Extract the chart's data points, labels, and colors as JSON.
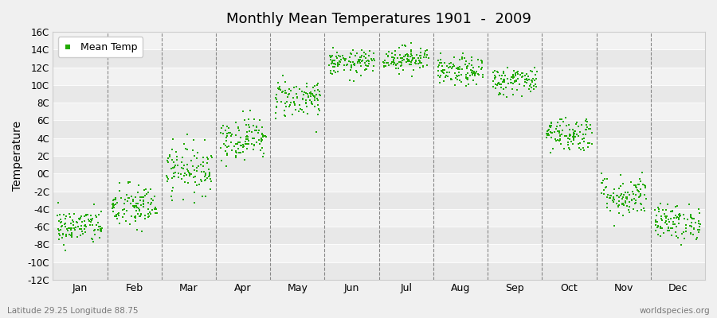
{
  "title": "Monthly Mean Temperatures 1901  -  2009",
  "ylabel": "Temperature",
  "xlabel_months": [
    "Jan",
    "Feb",
    "Mar",
    "Apr",
    "May",
    "Jun",
    "Jul",
    "Aug",
    "Sep",
    "Oct",
    "Nov",
    "Dec"
  ],
  "subtitle_left": "Latitude 29.25 Longitude 88.75",
  "subtitle_right": "worldspecies.org",
  "legend_label": "Mean Temp",
  "dot_color": "#22aa00",
  "bg_color": "#f0f0f0",
  "band_colors": [
    "#e8e8e8",
    "#f2f2f2"
  ],
  "ylim": [
    -12,
    16
  ],
  "ytick_step": 2,
  "n_years": 109,
  "monthly_means": [
    -6.0,
    -3.8,
    0.5,
    4.0,
    8.5,
    12.5,
    13.0,
    11.5,
    10.5,
    4.5,
    -2.5,
    -5.5
  ],
  "monthly_stds": [
    1.0,
    1.3,
    1.4,
    1.2,
    1.1,
    0.7,
    0.7,
    0.8,
    0.8,
    1.0,
    1.2,
    1.0
  ],
  "seed": 42,
  "dashed_line_color": "#888888",
  "grid_line_color": "#ffffff",
  "spine_color": "#cccccc"
}
